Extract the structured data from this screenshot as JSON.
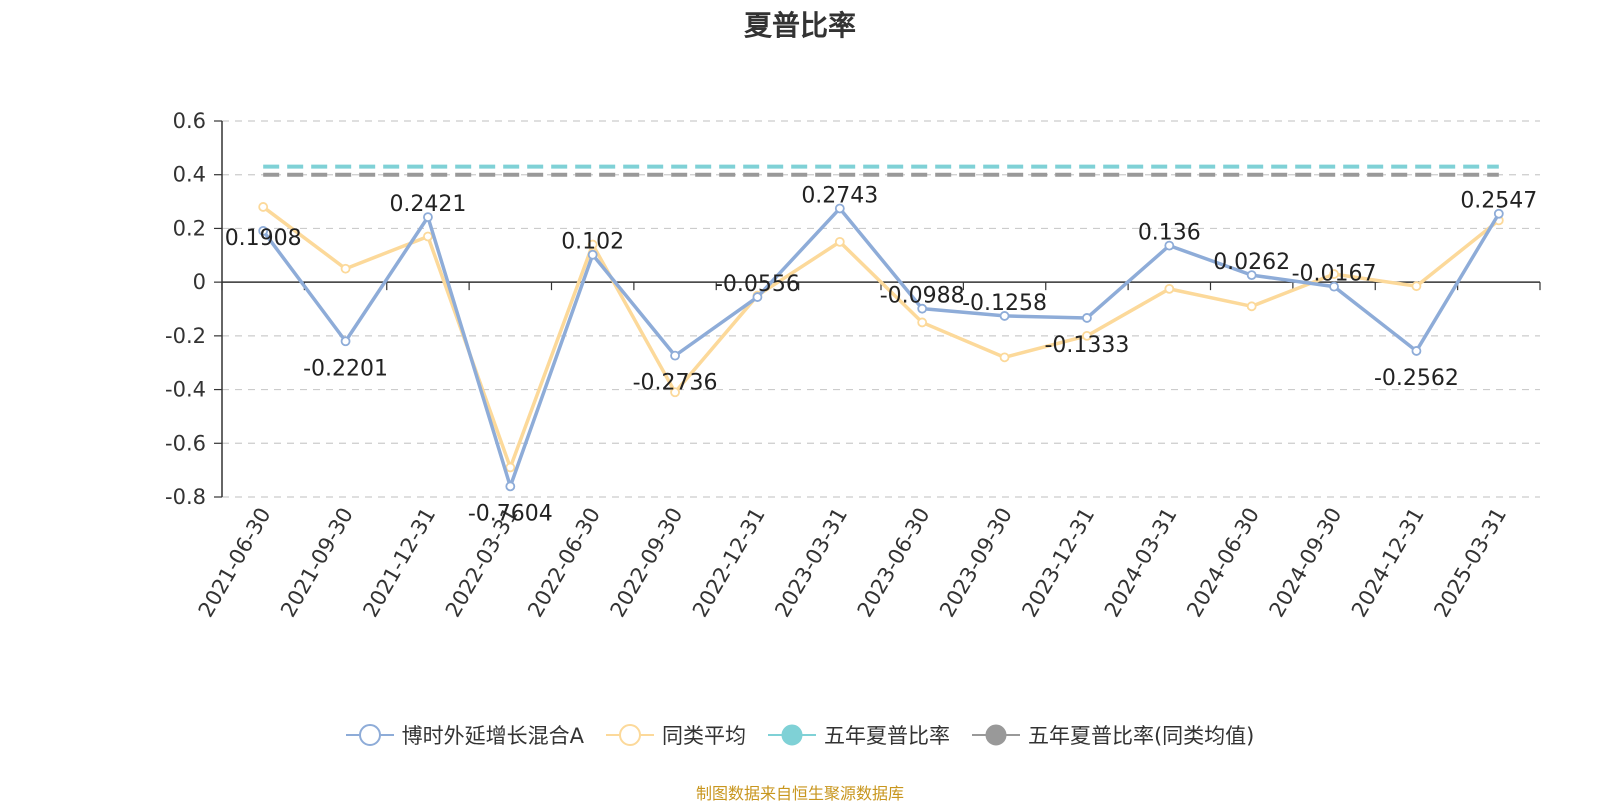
{
  "chart_data": {
    "type": "line",
    "title": "夏普比率",
    "x": [
      "2021-06-30",
      "2021-09-30",
      "2021-12-31",
      "2022-03-31",
      "2022-06-30",
      "2022-09-30",
      "2022-12-31",
      "2023-03-31",
      "2023-06-30",
      "2023-09-30",
      "2023-12-31",
      "2024-03-31",
      "2024-06-30",
      "2024-09-30",
      "2024-12-31",
      "2025-03-31"
    ],
    "ylim": [
      -0.8,
      0.6
    ],
    "yticks": [
      "0.6",
      "0.4",
      "0.2",
      "0",
      "-0.2",
      "-0.4",
      "-0.6",
      "-0.8"
    ],
    "grid": true,
    "legend_position": "bottom",
    "series": [
      {
        "name": "博时外延增长混合A",
        "color": "#8eacd8",
        "values": [
          0.1908,
          -0.2201,
          0.2421,
          -0.7604,
          0.102,
          -0.2736,
          -0.0556,
          0.2743,
          -0.0988,
          -0.1258,
          -0.1333,
          0.136,
          0.0262,
          -0.0167,
          -0.2562,
          0.2547
        ],
        "labels": [
          "0.1908",
          "-0.2201",
          "0.2421",
          "-0.7604",
          "0.102",
          "-0.2736",
          "-0.0556",
          "0.2743",
          "-0.0988",
          "-0.1258",
          "-0.1333",
          "0.136",
          "0.0262",
          "-0.0167",
          "-0.2562",
          "0.2547"
        ]
      },
      {
        "name": "同类平均",
        "color": "#fcd99a",
        "values": [
          0.28,
          0.05,
          0.17,
          -0.69,
          0.14,
          -0.41,
          -0.05,
          0.15,
          -0.15,
          -0.28,
          -0.2,
          -0.025,
          -0.09,
          0.03,
          -0.015,
          0.23
        ]
      },
      {
        "name": "五年夏普比率",
        "color": "#7fd1d6",
        "style": "dashed",
        "values": [
          0.43,
          0.43,
          0.43,
          0.43,
          0.43,
          0.43,
          0.43,
          0.43,
          0.43,
          0.43,
          0.43,
          0.43,
          0.43,
          0.43,
          0.43,
          0.43
        ]
      },
      {
        "name": "五年夏普比率(同类均值)",
        "color": "#999999",
        "style": "dashed",
        "values": [
          0.4,
          0.4,
          0.4,
          0.4,
          0.4,
          0.4,
          0.4,
          0.4,
          0.4,
          0.4,
          0.4,
          0.4,
          0.4,
          0.4,
          0.4,
          0.4
        ]
      }
    ]
  },
  "source": "制图数据来自恒生聚源数据库"
}
